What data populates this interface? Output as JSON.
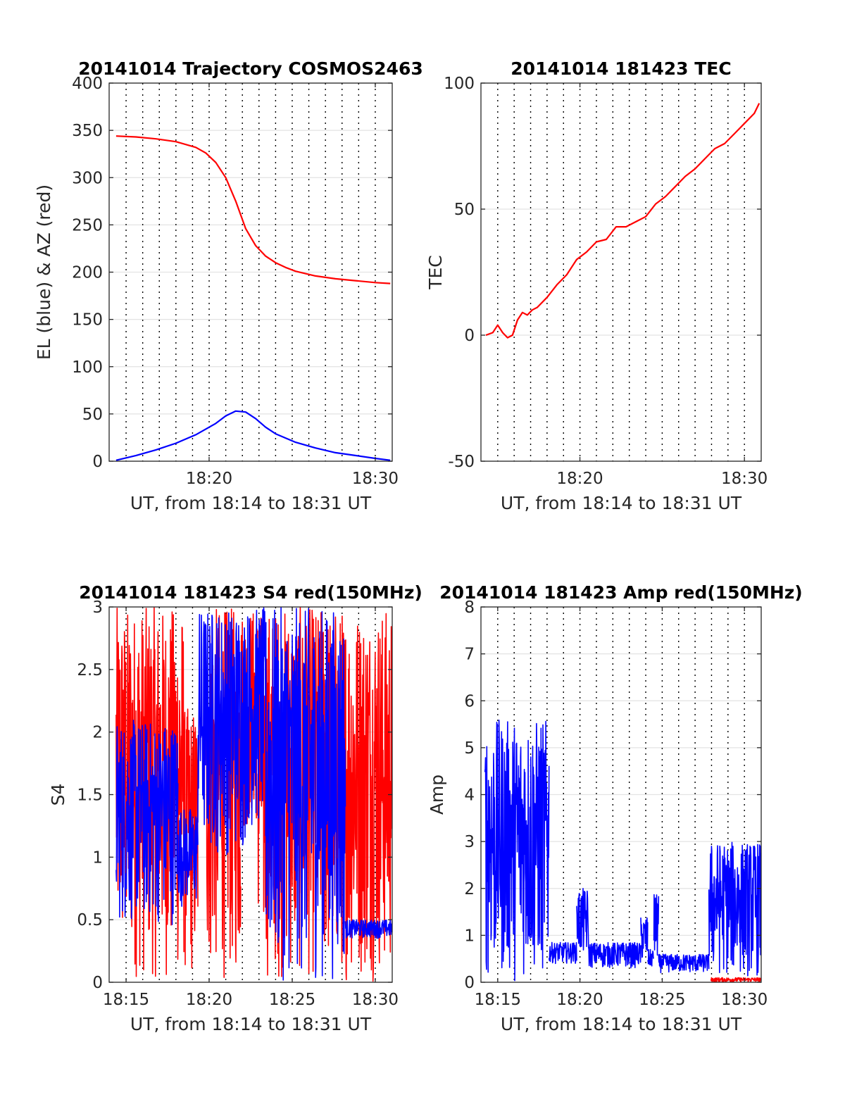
{
  "chart_data": [
    {
      "id": "trajectory",
      "type": "line",
      "title": "20141014 Trajectory COSMOS2463",
      "xlabel": "UT, from 18:14 to 18:31 UT",
      "ylabel": "EL (blue) & AZ (red)",
      "xlim": [
        18.233,
        18.517
      ],
      "ylim": [
        0,
        400
      ],
      "xticks": [
        {
          "v": 18.3333,
          "label": "18:20"
        },
        {
          "v": 18.5,
          "label": "18:30"
        }
      ],
      "yticks": [
        {
          "v": 0,
          "label": "0"
        },
        {
          "v": 50,
          "label": "50"
        },
        {
          "v": 100,
          "label": "100"
        },
        {
          "v": 150,
          "label": "150"
        },
        {
          "v": 200,
          "label": "200"
        },
        {
          "v": 250,
          "label": "250"
        },
        {
          "v": 300,
          "label": "300"
        },
        {
          "v": 350,
          "label": "350"
        },
        {
          "v": 400,
          "label": "400"
        }
      ],
      "grid": true,
      "series": [
        {
          "color": "#ff0000",
          "x": [
            18.24,
            18.26,
            18.28,
            18.3,
            18.32,
            18.33,
            18.34,
            18.35,
            18.36,
            18.37,
            18.38,
            18.39,
            18.4,
            18.41,
            18.42,
            18.44,
            18.46,
            18.48,
            18.5,
            18.515
          ],
          "y": [
            344,
            343,
            341,
            338,
            332,
            326,
            316,
            300,
            275,
            246,
            228,
            217,
            210,
            205,
            201,
            196,
            193,
            191,
            189,
            188
          ]
        },
        {
          "color": "#0000ff",
          "x": [
            18.24,
            18.26,
            18.28,
            18.3,
            18.32,
            18.34,
            18.35,
            18.36,
            18.37,
            18.38,
            18.39,
            18.4,
            18.42,
            18.44,
            18.46,
            18.48,
            18.5,
            18.515
          ],
          "y": [
            1,
            6,
            12,
            19,
            28,
            40,
            48,
            53,
            52,
            45,
            36,
            29,
            20,
            14,
            9,
            6,
            3,
            1
          ]
        }
      ]
    },
    {
      "id": "tec",
      "type": "line",
      "title": "20141014 181423 TEC",
      "xlabel": "UT, from 18:14 to 18:31 UT",
      "ylabel": "TEC",
      "xlim": [
        18.233,
        18.517
      ],
      "ylim": [
        -50,
        100
      ],
      "xticks": [
        {
          "v": 18.3333,
          "label": "18:20"
        },
        {
          "v": 18.5,
          "label": "18:30"
        }
      ],
      "yticks": [
        {
          "v": -50,
          "label": "-50"
        },
        {
          "v": 0,
          "label": "0"
        },
        {
          "v": 50,
          "label": "50"
        },
        {
          "v": 100,
          "label": "100"
        }
      ],
      "grid": true,
      "series": [
        {
          "color": "#ff0000",
          "x": [
            18.238,
            18.245,
            18.25,
            18.255,
            18.26,
            18.265,
            18.27,
            18.275,
            18.28,
            18.285,
            18.29,
            18.3,
            18.31,
            18.32,
            18.33,
            18.34,
            18.35,
            18.36,
            18.37,
            18.38,
            18.39,
            18.4,
            18.41,
            18.42,
            18.43,
            18.44,
            18.45,
            18.46,
            18.47,
            18.48,
            18.49,
            18.5,
            18.51,
            18.515
          ],
          "y": [
            0,
            1,
            4,
            1,
            -1,
            0,
            6,
            9,
            8,
            10,
            11,
            15,
            20,
            24,
            30,
            33,
            37,
            38,
            43,
            43,
            45,
            47,
            52,
            55,
            59,
            63,
            66,
            70,
            74,
            76,
            80,
            84,
            88,
            92
          ]
        }
      ]
    },
    {
      "id": "s4",
      "type": "line",
      "title": "20141014 181423 S4 red(150MHz)",
      "xlabel": "UT, from 18:14 to 18:31 UT",
      "ylabel": "S4",
      "xlim": [
        18.233,
        18.517
      ],
      "ylim": [
        0,
        3
      ],
      "xticks": [
        {
          "v": 18.25,
          "label": "18:15"
        },
        {
          "v": 18.3333,
          "label": "18:20"
        },
        {
          "v": 18.4167,
          "label": "18:25"
        },
        {
          "v": 18.5,
          "label": "18:30"
        }
      ],
      "yticks": [
        {
          "v": 0,
          "label": "0"
        },
        {
          "v": 0.5,
          "label": "0.5"
        },
        {
          "v": 1,
          "label": "1"
        },
        {
          "v": 1.5,
          "label": "1.5"
        },
        {
          "v": 2,
          "label": "2"
        },
        {
          "v": 2.5,
          "label": "2.5"
        },
        {
          "v": 3,
          "label": "3"
        }
      ],
      "grid": true,
      "series": [
        {
          "color": "#ff0000",
          "noise": true,
          "segments": [
            {
              "x0": 18.24,
              "x1": 18.308,
              "lo": 0.0,
              "hi": 3.0
            },
            {
              "x0": 18.308,
              "x1": 18.322,
              "lo": 0.0,
              "hi": 2.2
            },
            {
              "x0": 18.33,
              "x1": 18.365,
              "lo": 0.0,
              "hi": 3.0
            },
            {
              "x0": 18.365,
              "x1": 18.382,
              "lo": 1.2,
              "hi": 3.0
            },
            {
              "x0": 18.382,
              "x1": 18.47,
              "lo": 0.0,
              "hi": 3.0
            },
            {
              "x0": 18.47,
              "x1": 18.517,
              "lo": 0.0,
              "hi": 3.0
            }
          ]
        },
        {
          "color": "#0000ff",
          "noise": true,
          "segments": [
            {
              "x0": 18.24,
              "x1": 18.302,
              "lo": 0.45,
              "hi": 2.1
            },
            {
              "x0": 18.302,
              "x1": 18.322,
              "lo": 0.6,
              "hi": 1.4
            },
            {
              "x0": 18.322,
              "x1": 18.37,
              "lo": 1.0,
              "hi": 3.0
            },
            {
              "x0": 18.37,
              "x1": 18.39,
              "lo": 1.2,
              "hi": 3.0
            },
            {
              "x0": 18.39,
              "x1": 18.47,
              "lo": 0.0,
              "hi": 3.0
            },
            {
              "x0": 18.47,
              "x1": 18.517,
              "lo": 0.35,
              "hi": 0.5
            }
          ]
        }
      ]
    },
    {
      "id": "amp",
      "type": "line",
      "title": "20141014 181423 Amp red(150MHz)",
      "xlabel": "UT, from 18:14 to 18:31 UT",
      "ylabel": "Amp",
      "xlim": [
        18.233,
        18.517
      ],
      "ylim": [
        0,
        8
      ],
      "xticks": [
        {
          "v": 18.25,
          "label": "18:15"
        },
        {
          "v": 18.3333,
          "label": "18:20"
        },
        {
          "v": 18.4167,
          "label": "18:25"
        },
        {
          "v": 18.5,
          "label": "18:30"
        }
      ],
      "yticks": [
        {
          "v": 0,
          "label": "0"
        },
        {
          "v": 1,
          "label": "1"
        },
        {
          "v": 2,
          "label": "2"
        },
        {
          "v": 3,
          "label": "3"
        },
        {
          "v": 4,
          "label": "4"
        },
        {
          "v": 5,
          "label": "5"
        },
        {
          "v": 6,
          "label": "6"
        },
        {
          "v": 7,
          "label": "7"
        },
        {
          "v": 8,
          "label": "8"
        }
      ],
      "grid": true,
      "series": [
        {
          "color": "#ff0000",
          "noise": true,
          "segments": [
            {
              "x0": 18.466,
              "x1": 18.517,
              "lo": 0.0,
              "hi": 0.1
            }
          ]
        },
        {
          "color": "#0000ff",
          "noise": true,
          "segments": [
            {
              "x0": 18.237,
              "x1": 18.302,
              "lo": 0.0,
              "hi": 5.6
            },
            {
              "x0": 18.302,
              "x1": 18.33,
              "lo": 0.4,
              "hi": 0.85
            },
            {
              "x0": 18.33,
              "x1": 18.342,
              "lo": 0.5,
              "hi": 2.0
            },
            {
              "x0": 18.342,
              "x1": 18.395,
              "lo": 0.3,
              "hi": 0.85
            },
            {
              "x0": 18.395,
              "x1": 18.402,
              "lo": 0.4,
              "hi": 1.4
            },
            {
              "x0": 18.402,
              "x1": 18.408,
              "lo": 0.3,
              "hi": 0.7
            },
            {
              "x0": 18.408,
              "x1": 18.413,
              "lo": 0.4,
              "hi": 1.9
            },
            {
              "x0": 18.413,
              "x1": 18.464,
              "lo": 0.2,
              "hi": 0.6
            },
            {
              "x0": 18.464,
              "x1": 18.517,
              "lo": 0.1,
              "hi": 3.0
            }
          ]
        }
      ]
    }
  ]
}
